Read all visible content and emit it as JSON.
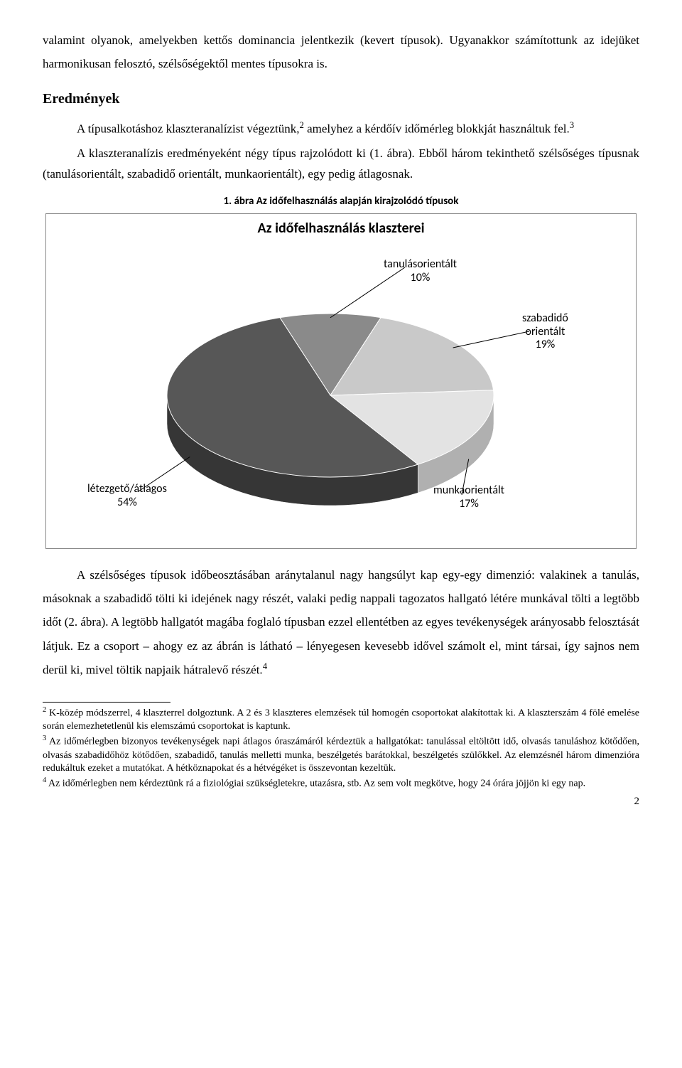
{
  "paragraph_intro": "valamint olyanok, amelyekben kettős dominancia jelentkezik (kevert típusok). Ugyanakkor számítottunk az idejüket harmonikusan felosztó, szélsőségektől mentes típusokra is.",
  "heading_results": "Eredmények",
  "paragraph_results_1a": "A típusalkotáshoz klaszteranalízist végeztünk,",
  "sup2": "2",
  "paragraph_results_1b": " amelyhez a kérdőív időmérleg blokkját használtuk fel.",
  "sup3": "3",
  "paragraph_results_2": "A klaszteranalízis eredményeként négy típus rajzolódott ki (1. ábra). Ebből három tekinthető szélsőséges típusnak (tanulásorientált, szabadidő orientált, munkaorientált), egy pedig átlagosnak.",
  "figure_caption": "1. ábra Az időfelhasználás alapján kirajzolódó típusok",
  "chart": {
    "title": "Az időfelhasználás klaszterei",
    "slices": [
      {
        "label_line1": "tanulásorientált",
        "label_line2": "10%",
        "value": 10,
        "color_top": "#8a8a8a",
        "color_side": "#5c5c5c"
      },
      {
        "label_line1": "szabadidő",
        "label_line2": "orientált",
        "label_line3": "19%",
        "value": 19,
        "color_top": "#c9c9c9",
        "color_side": "#8f8f8f"
      },
      {
        "label_line1": "munkaorientált",
        "label_line2": "17%",
        "value": 17,
        "color_top": "#e3e3e3",
        "color_side": "#b0b0b0"
      },
      {
        "label_line1": "létezgető/átlagos",
        "label_line2": "54%",
        "value": 54,
        "color_top": "#575757",
        "color_side": "#363636"
      }
    ],
    "border_color": "#888888",
    "background": "#ffffff",
    "title_fontsize": 20,
    "label_fontsize": 16,
    "leader_color": "#000000"
  },
  "paragraph_after_chart": "A szélsőséges típusok időbeosztásában aránytalanul nagy hangsúlyt kap egy-egy dimenzió: valakinek a tanulás, másoknak a szabadidő tölti ki idejének nagy részét, valaki pedig nappali tagozatos hallgató létére munkával tölti a legtöbb időt (2. ábra). A legtöbb hallgatót magába foglaló típusban ezzel ellentétben az egyes tevékenységek arányosabb felosztását látjuk. Ez a csoport – ahogy ez az ábrán is látható – lényegesen kevesebb idővel számolt el, mint társai, így sajnos nem derül ki, mivel töltik napjaik hátralevő részét.",
  "sup4": "4",
  "footnotes": {
    "f2": "K-közép módszerrel, 4 klaszterrel dolgoztunk. A 2 és 3 klaszteres elemzések túl homogén csoportokat alakítottak ki. A klaszterszám 4 fölé emelése során elemezhetetlenül kis elemszámú csoportokat is kaptunk.",
    "f3": "Az időmérlegben bizonyos tevékenységek napi átlagos óraszámáról kérdeztük a hallgatókat: tanulással eltöltött idő, olvasás tanuláshoz kötődően, olvasás szabadidőhöz kötődően, szabadidő, tanulás melletti munka, beszélgetés barátokkal, beszélgetés szülőkkel. Az elemzésnél három dimenzióra redukáltuk ezeket a mutatókat. A hétköznapokat és a hétvégéket is összevontan kezeltük.",
    "f4": "Az időmérlegben nem kérdeztünk rá a fiziológiai szükségletekre, utazásra, stb. Az sem volt megkötve, hogy 24 órára jöjjön ki egy nap."
  },
  "page_number": "2"
}
